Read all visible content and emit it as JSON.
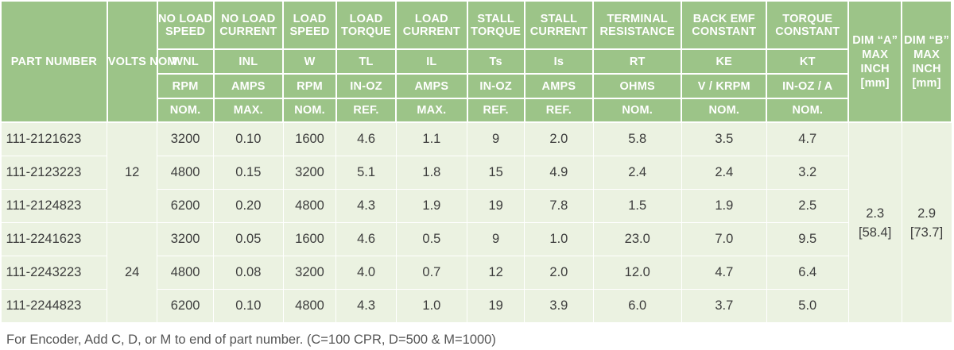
{
  "header": {
    "part_number": "PART NUMBER",
    "volts": "VOLTS NOM",
    "columns": [
      {
        "name": "NO LOAD SPEED",
        "symbol": "WNL",
        "unit": "RPM",
        "basis": "NOM."
      },
      {
        "name": "NO LOAD CURRENT",
        "symbol": "INL",
        "unit": "AMPS",
        "basis": "MAX."
      },
      {
        "name": "LOAD SPEED",
        "symbol": "W",
        "unit": "RPM",
        "basis": "NOM."
      },
      {
        "name": "LOAD TORQUE",
        "symbol": "TL",
        "unit": "IN-OZ",
        "basis": "REF."
      },
      {
        "name": "LOAD CURRENT",
        "symbol": "IL",
        "unit": "AMPS",
        "basis": "MAX."
      },
      {
        "name": "STALL TORQUE",
        "symbol": "Ts",
        "unit": "IN-OZ",
        "basis": "REF."
      },
      {
        "name": "STALL CURRENT",
        "symbol": "Is",
        "unit": "AMPS",
        "basis": "REF."
      },
      {
        "name": "TERMINAL RESISTANCE",
        "symbol": "RT",
        "unit": "OHMS",
        "basis": "NOM."
      },
      {
        "name": "BACK EMF CONSTANT",
        "symbol": "KE",
        "unit": "V / KRPM",
        "basis": "NOM."
      },
      {
        "name": "TORQUE CONSTANT",
        "symbol": "KT",
        "unit": "IN-OZ / A",
        "basis": "NOM."
      }
    ],
    "dim_a": "DIM “A” MAX INCH [mm]",
    "dim_b": "DIM “B” MAX INCH [mm]"
  },
  "groups": [
    {
      "volts": "12",
      "rows": [
        {
          "part": "111-2121623",
          "values": [
            "3200",
            "0.10",
            "1600",
            "4.6",
            "1.1",
            "9",
            "2.0",
            "5.8",
            "3.5",
            "4.7"
          ]
        },
        {
          "part": "111-2123223",
          "values": [
            "4800",
            "0.15",
            "3200",
            "5.1",
            "1.8",
            "15",
            "4.9",
            "2.4",
            "2.4",
            "3.2"
          ]
        },
        {
          "part": "111-2124823",
          "values": [
            "6200",
            "0.20",
            "4800",
            "4.3",
            "1.9",
            "19",
            "7.8",
            "1.5",
            "1.9",
            "2.5"
          ]
        }
      ]
    },
    {
      "volts": "24",
      "rows": [
        {
          "part": "111-2241623",
          "values": [
            "3200",
            "0.05",
            "1600",
            "4.6",
            "0.5",
            "9",
            "1.0",
            "23.0",
            "7.0",
            "9.5"
          ]
        },
        {
          "part": "111-2243223",
          "values": [
            "4800",
            "0.08",
            "3200",
            "4.0",
            "0.7",
            "12",
            "2.0",
            "12.0",
            "4.7",
            "6.4"
          ]
        },
        {
          "part": "111-2244823",
          "values": [
            "6200",
            "0.10",
            "4800",
            "4.3",
            "1.0",
            "19",
            "3.9",
            "6.0",
            "3.7",
            "5.0"
          ]
        }
      ]
    }
  ],
  "dimensions": {
    "a_inch": "2.3",
    "a_mm": "[58.4]",
    "b_inch": "2.9",
    "b_mm": "[73.7]"
  },
  "footnote": "For Encoder, Add C, D, or M to end of part number. (C=100 CPR, D=500 & M=1000)"
}
